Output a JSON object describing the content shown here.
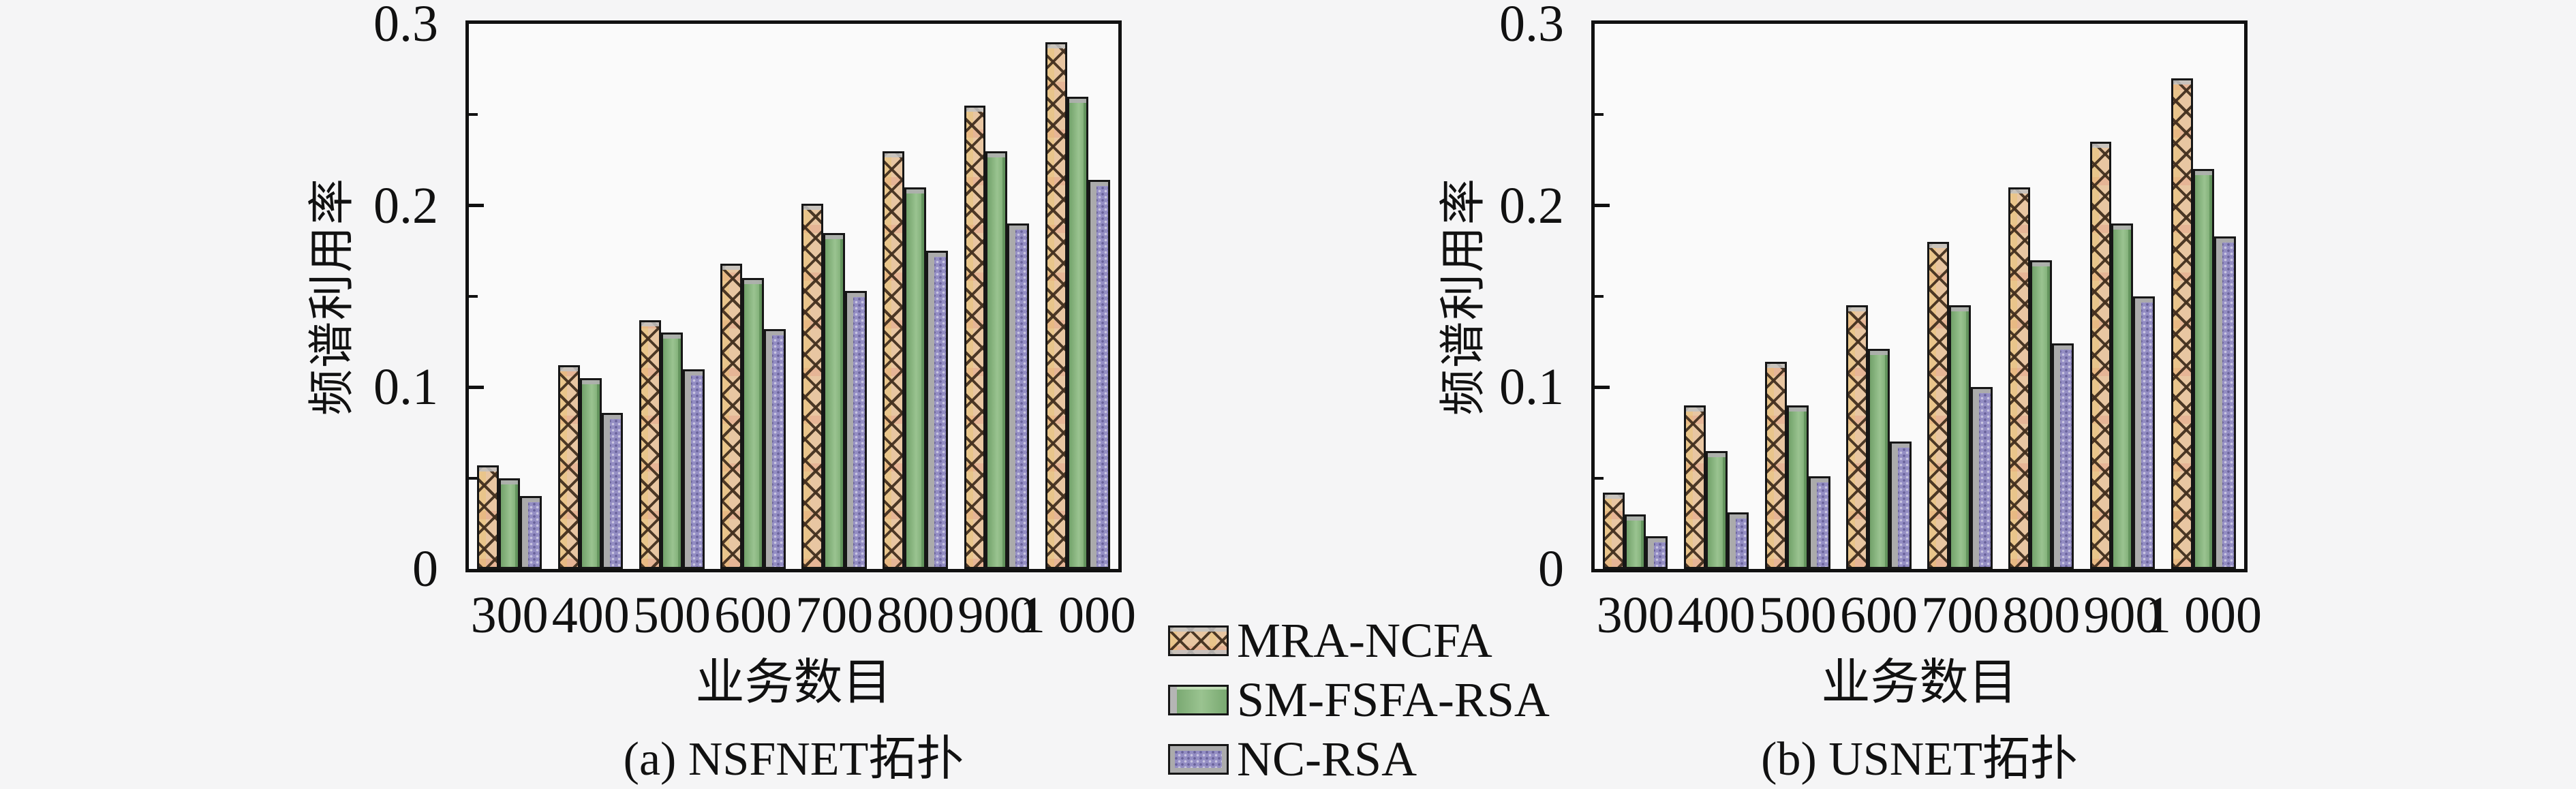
{
  "figure": {
    "background_color": "#f5f5f6",
    "axis_color": "#111111",
    "text_color": "#111111"
  },
  "legend": {
    "position": "bottom-center-between-charts",
    "items": [
      {
        "label": "MRA-NCFA",
        "swatch": "tan-crosshatch-pattern",
        "color": "#e8c6a2"
      },
      {
        "label": "SM-FSFA-RSA",
        "swatch": "green-solid",
        "color": "#8cbb81"
      },
      {
        "label": "NC-RSA",
        "swatch": "purple-dotted-pattern",
        "color": "#938dc3"
      }
    ]
  },
  "chart_data": [
    {
      "type": "bar",
      "caption": "(a) NSFNET拓扑",
      "xlabel": "业务数目",
      "ylabel": "频谱利用率",
      "categories": [
        "300",
        "400",
        "500",
        "600",
        "700",
        "800",
        "900",
        "1 000"
      ],
      "ylim": [
        0,
        0.3
      ],
      "yticks_major": [
        0,
        0.1,
        0.2,
        0.3
      ],
      "ytick_labels": [
        "0",
        "0.1",
        "0.2",
        "0.3"
      ],
      "yticks_minor": [
        0.05,
        0.15,
        0.25
      ],
      "grid": false,
      "legend_entries": [
        "MRA-NCFA",
        "SM-FSFA-RSA",
        "NC-RSA"
      ],
      "series": [
        {
          "name": "MRA-NCFA",
          "values": [
            0.057,
            0.112,
            0.137,
            0.168,
            0.201,
            0.23,
            0.255,
            0.29
          ]
        },
        {
          "name": "SM-FSFA-RSA",
          "values": [
            0.05,
            0.105,
            0.13,
            0.16,
            0.185,
            0.21,
            0.23,
            0.26
          ]
        },
        {
          "name": "NC-RSA",
          "values": [
            0.04,
            0.086,
            0.11,
            0.132,
            0.153,
            0.175,
            0.19,
            0.214
          ]
        }
      ]
    },
    {
      "type": "bar",
      "caption": "(b) USNET拓扑",
      "xlabel": "业务数目",
      "ylabel": "频谱利用率",
      "categories": [
        "300",
        "400",
        "500",
        "600",
        "700",
        "800",
        "900",
        "1 000"
      ],
      "ylim": [
        0,
        0.3
      ],
      "yticks_major": [
        0,
        0.1,
        0.2,
        0.3
      ],
      "ytick_labels": [
        "0",
        "0.1",
        "0.2",
        "0.3"
      ],
      "yticks_minor": [
        0.05,
        0.15,
        0.25
      ],
      "grid": false,
      "legend_entries": [
        "MRA-NCFA",
        "SM-FSFA-RSA",
        "NC-RSA"
      ],
      "series": [
        {
          "name": "MRA-NCFA",
          "values": [
            0.042,
            0.09,
            0.114,
            0.145,
            0.18,
            0.21,
            0.235,
            0.27
          ]
        },
        {
          "name": "SM-FSFA-RSA",
          "values": [
            0.03,
            0.065,
            0.09,
            0.121,
            0.145,
            0.17,
            0.19,
            0.22
          ]
        },
        {
          "name": "NC-RSA",
          "values": [
            0.018,
            0.031,
            0.051,
            0.07,
            0.1,
            0.124,
            0.15,
            0.183
          ]
        }
      ]
    }
  ]
}
